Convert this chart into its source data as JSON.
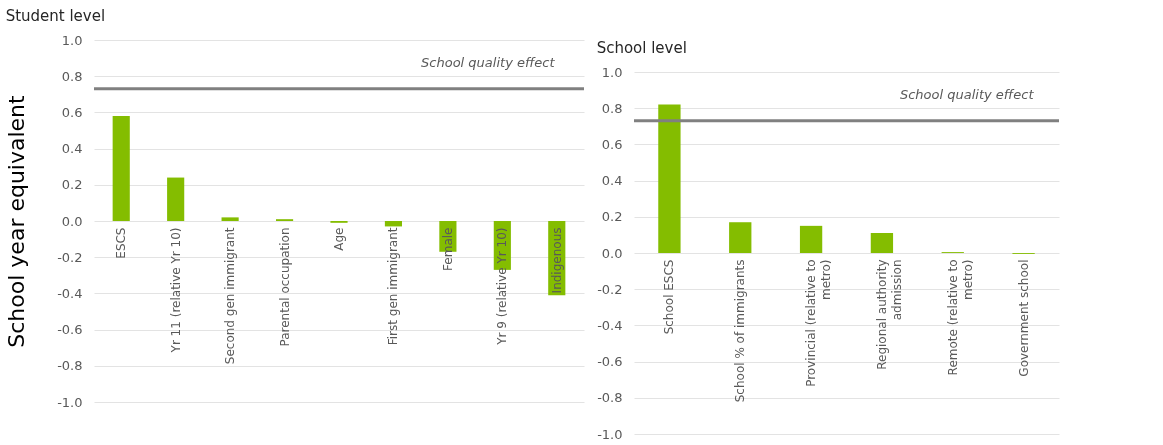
{
  "chart_data": [
    {
      "type": "bar",
      "title": "Student level",
      "ylabel": "School year equivalent",
      "categories": [
        "ESCS",
        "Yr 11 (relative Yr 10)",
        "Second gen immigrant",
        "Parental occupation",
        "Age",
        "First gen immigrant",
        "Female",
        "Yr 9 (relative Yr 10)",
        "Indigenous"
      ],
      "values": [
        0.58,
        0.24,
        0.02,
        0.01,
        -0.01,
        -0.03,
        -0.17,
        -0.27,
        -0.41
      ],
      "color": "#84bd00",
      "ylim": [
        -1,
        1
      ],
      "yticks": [
        {
          "value": -1,
          "label": "-1.0"
        },
        {
          "value": -0.8,
          "label": "-0.8"
        },
        {
          "value": -0.6,
          "label": "-0.6"
        },
        {
          "value": -0.4,
          "label": "-0.4"
        },
        {
          "value": -0.2,
          "label": "-0.2"
        },
        {
          "value": 0,
          "label": "0.0"
        },
        {
          "value": 0.2,
          "label": "0.2"
        },
        {
          "value": 0.4,
          "label": "0.4"
        },
        {
          "value": 0.6,
          "label": "0.6"
        },
        {
          "value": 0.8,
          "label": "0.8"
        },
        {
          "value": 1,
          "label": "1.0"
        }
      ],
      "ref_lines": [
        {
          "axis": "y",
          "value": 0.73,
          "label": "School quality effect",
          "color": "#808080"
        }
      ],
      "grid": "y"
    },
    {
      "type": "bar",
      "title": "School level",
      "categories": [
        "School ESCS",
        "School % of immigrants",
        "Provincial (relative to metro)",
        "Regional authority admission",
        "Remote (relative to metro)",
        "Government school"
      ],
      "values": [
        0.82,
        0.17,
        0.15,
        0.11,
        0.005,
        -0.005
      ],
      "color": "#84bd00",
      "ylim": [
        -1,
        1
      ],
      "yticks": [
        {
          "value": -1,
          "label": "-1.0"
        },
        {
          "value": -0.8,
          "label": "-0.8"
        },
        {
          "value": -0.6,
          "label": "-0.6"
        },
        {
          "value": -0.4,
          "label": "-0.4"
        },
        {
          "value": -0.2,
          "label": "-0.2"
        },
        {
          "value": 0,
          "label": "0.0"
        },
        {
          "value": 0.2,
          "label": "0.2"
        },
        {
          "value": 0.4,
          "label": "0.4"
        },
        {
          "value": 0.6,
          "label": "0.6"
        },
        {
          "value": 0.8,
          "label": "0.8"
        },
        {
          "value": 1,
          "label": "1.0"
        }
      ],
      "ref_lines": [
        {
          "axis": "y",
          "value": 0.73,
          "label": "School quality effect",
          "color": "#808080"
        }
      ],
      "grid": "y"
    }
  ]
}
